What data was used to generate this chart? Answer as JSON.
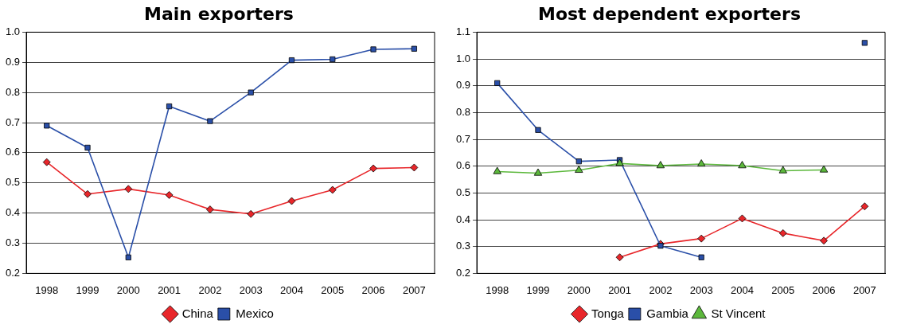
{
  "chart_data": [
    {
      "type": "line",
      "title": "Main exporters",
      "categories": [
        "1998",
        "1999",
        "2000",
        "2001",
        "2002",
        "2003",
        "2004",
        "2005",
        "2006",
        "2007"
      ],
      "series": [
        {
          "name": "China",
          "color": "#e8262a",
          "marker": "diamond",
          "values": [
            0.569,
            0.463,
            0.48,
            0.46,
            0.412,
            0.397,
            0.44,
            0.477,
            0.548,
            0.551
          ]
        },
        {
          "name": "Mexico",
          "color": "#2a4fa8",
          "marker": "square",
          "values": [
            0.69,
            0.617,
            0.253,
            0.754,
            0.705,
            0.8,
            0.907,
            0.91,
            0.943,
            0.945
          ]
        }
      ],
      "ylim": [
        0.2,
        1.0
      ],
      "yticks": [
        {
          "value": 0.2,
          "label": "0.2"
        },
        {
          "value": 0.3,
          "label": "0.3"
        },
        {
          "value": 0.4,
          "label": "0.4"
        },
        {
          "value": 0.5,
          "label": "0.5"
        },
        {
          "value": 0.6,
          "label": "0.6"
        },
        {
          "value": 0.7,
          "label": "0.7"
        },
        {
          "value": 0.8,
          "label": "0.8"
        },
        {
          "value": 0.9,
          "label": "0.9"
        },
        {
          "value": 1.0,
          "label": "1.0"
        }
      ],
      "grid": "y",
      "legend": "bottom"
    },
    {
      "type": "line",
      "title": "Most dependent exporters",
      "categories": [
        "1998",
        "1999",
        "2000",
        "2001",
        "2002",
        "2003",
        "2004",
        "2005",
        "2006",
        "2007"
      ],
      "series": [
        {
          "name": "Tonga",
          "color": "#e8262a",
          "marker": "diamond",
          "values": [
            null,
            null,
            null,
            0.26,
            0.31,
            0.33,
            0.405,
            0.35,
            0.322,
            0.45
          ]
        },
        {
          "name": "Gambia",
          "color": "#2a4fa8",
          "marker": "square",
          "values": [
            0.91,
            0.735,
            0.618,
            0.623,
            0.303,
            0.26,
            null,
            null,
            null,
            1.06
          ]
        },
        {
          "name": "St Vincent",
          "color": "#5cb83c",
          "marker": "triangle",
          "values": [
            0.58,
            0.574,
            0.585,
            0.61,
            0.602,
            0.608,
            0.602,
            0.583,
            0.586,
            null
          ]
        }
      ],
      "ylim": [
        0.2,
        1.1
      ],
      "yticks": [
        {
          "value": 0.2,
          "label": "0.2"
        },
        {
          "value": 0.3,
          "label": "0.3"
        },
        {
          "value": 0.4,
          "label": "0.4"
        },
        {
          "value": 0.5,
          "label": "0.5"
        },
        {
          "value": 0.6,
          "label": "0.6"
        },
        {
          "value": 0.7,
          "label": "0.7"
        },
        {
          "value": 0.8,
          "label": "0.8"
        },
        {
          "value": 0.9,
          "label": "0.9"
        },
        {
          "value": 1.0,
          "label": "1.0"
        },
        {
          "value": 1.1,
          "label": "1.1"
        }
      ],
      "grid": "y",
      "legend": "bottom"
    }
  ]
}
